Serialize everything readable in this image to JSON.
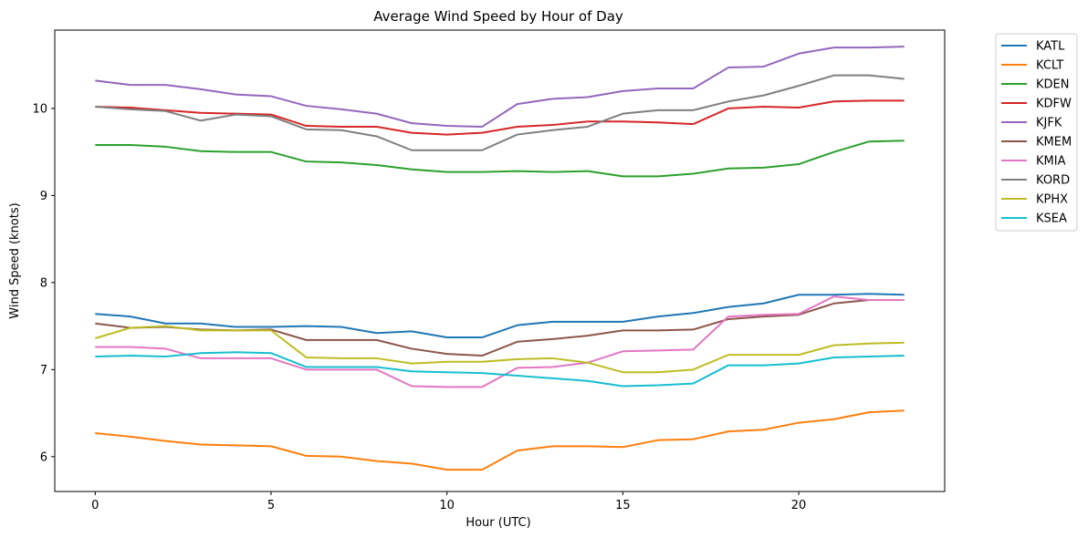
{
  "chart_data": {
    "type": "line",
    "title": "Average Wind Speed by Hour of Day",
    "xlabel": "Hour (UTC)",
    "ylabel": "Wind Speed (knots)",
    "xlim": [
      -1.15,
      24.15
    ],
    "ylim": [
      5.6,
      10.9
    ],
    "x_ticks": [
      0,
      5,
      10,
      15,
      20
    ],
    "y_ticks": [
      6,
      7,
      8,
      9,
      10
    ],
    "grid": false,
    "legend_position": "outside-right",
    "x": [
      0,
      1,
      2,
      3,
      4,
      5,
      6,
      7,
      8,
      9,
      10,
      11,
      12,
      13,
      14,
      15,
      16,
      17,
      18,
      19,
      20,
      21,
      22,
      23
    ],
    "series": [
      {
        "name": "KATL",
        "color": "#1f77b4",
        "values": [
          7.64,
          7.61,
          7.53,
          7.53,
          7.49,
          7.49,
          7.5,
          7.49,
          7.42,
          7.44,
          7.37,
          7.37,
          7.51,
          7.55,
          7.55,
          7.55,
          7.61,
          7.65,
          7.72,
          7.76,
          7.86,
          7.86,
          7.87,
          7.86
        ]
      },
      {
        "name": "KCLT",
        "color": "#ff7f0e",
        "values": [
          6.27,
          6.23,
          6.18,
          6.14,
          6.13,
          6.12,
          6.01,
          6.0,
          5.95,
          5.92,
          5.85,
          5.85,
          6.07,
          6.12,
          6.12,
          6.11,
          6.19,
          6.2,
          6.29,
          6.31,
          6.39,
          6.43,
          6.51,
          6.53
        ]
      },
      {
        "name": "KDEN",
        "color": "#2ca02c",
        "values": [
          9.58,
          9.58,
          9.56,
          9.51,
          9.5,
          9.5,
          9.39,
          9.38,
          9.35,
          9.3,
          9.27,
          9.27,
          9.28,
          9.27,
          9.28,
          9.22,
          9.22,
          9.25,
          9.31,
          9.32,
          9.36,
          9.5,
          9.62,
          9.63
        ]
      },
      {
        "name": "KDFW",
        "color": "#d62728",
        "values": [
          10.02,
          10.01,
          9.98,
          9.95,
          9.94,
          9.93,
          9.8,
          9.79,
          9.79,
          9.72,
          9.7,
          9.72,
          9.79,
          9.81,
          9.85,
          9.85,
          9.84,
          9.82,
          10.0,
          10.02,
          10.01,
          10.08,
          10.09,
          10.09
        ]
      },
      {
        "name": "KJFK",
        "color": "#9467bd",
        "values": [
          10.32,
          10.27,
          10.27,
          10.22,
          10.16,
          10.14,
          10.03,
          9.99,
          9.94,
          9.83,
          9.8,
          9.79,
          10.05,
          10.11,
          10.13,
          10.2,
          10.23,
          10.23,
          10.47,
          10.48,
          10.63,
          10.7,
          10.7,
          10.71
        ]
      },
      {
        "name": "KMEM",
        "color": "#8c564b",
        "values": [
          7.53,
          7.48,
          7.49,
          7.46,
          7.45,
          7.46,
          7.34,
          7.34,
          7.34,
          7.24,
          7.18,
          7.16,
          7.32,
          7.35,
          7.39,
          7.45,
          7.45,
          7.46,
          7.58,
          7.61,
          7.63,
          7.76,
          7.8,
          7.8
        ]
      },
      {
        "name": "KMIA",
        "color": "#e377c2",
        "values": [
          7.26,
          7.26,
          7.24,
          7.13,
          7.13,
          7.13,
          7.0,
          7.0,
          7.0,
          6.81,
          6.8,
          6.8,
          7.02,
          7.03,
          7.08,
          7.21,
          7.22,
          7.23,
          7.61,
          7.63,
          7.64,
          7.84,
          7.8,
          7.8
        ]
      },
      {
        "name": "KORD",
        "color": "#7f7f7f",
        "values": [
          10.02,
          9.99,
          9.97,
          9.86,
          9.93,
          9.91,
          9.76,
          9.75,
          9.68,
          9.52,
          9.52,
          9.52,
          9.7,
          9.75,
          9.79,
          9.94,
          9.98,
          9.98,
          10.08,
          10.15,
          10.26,
          10.38,
          10.38,
          10.34
        ]
      },
      {
        "name": "KPHX",
        "color": "#bcbd22",
        "values": [
          7.36,
          7.48,
          7.5,
          7.45,
          7.45,
          7.45,
          7.14,
          7.13,
          7.13,
          7.07,
          7.09,
          7.09,
          7.12,
          7.13,
          7.08,
          6.97,
          6.97,
          7.0,
          7.17,
          7.17,
          7.17,
          7.28,
          7.3,
          7.31
        ]
      },
      {
        "name": "KSEA",
        "color": "#17becf",
        "values": [
          7.15,
          7.16,
          7.15,
          7.19,
          7.2,
          7.19,
          7.03,
          7.03,
          7.03,
          6.98,
          6.97,
          6.96,
          6.93,
          6.9,
          6.87,
          6.81,
          6.82,
          6.84,
          7.05,
          7.05,
          7.07,
          7.14,
          7.15,
          7.16
        ]
      }
    ]
  }
}
